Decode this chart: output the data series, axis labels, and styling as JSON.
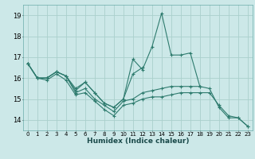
{
  "title": "",
  "xlabel": "Humidex (Indice chaleur)",
  "background_color": "#cce8e8",
  "grid_color": "#aad0cc",
  "line_color": "#2e7b6e",
  "x_values": [
    0,
    1,
    2,
    3,
    4,
    5,
    6,
    7,
    8,
    9,
    10,
    11,
    12,
    13,
    14,
    15,
    16,
    17,
    18,
    19,
    20,
    21,
    22,
    23
  ],
  "series": [
    [
      16.7,
      16.0,
      16.0,
      16.3,
      16.1,
      15.5,
      15.8,
      15.3,
      14.8,
      14.6,
      15.0,
      16.9,
      16.4,
      17.5,
      19.1,
      17.1,
      17.1,
      17.2,
      15.6,
      15.5,
      14.6,
      14.1,
      14.1,
      13.7
    ],
    [
      16.7,
      16.0,
      16.0,
      16.3,
      16.1,
      15.4,
      15.8,
      15.3,
      14.8,
      14.6,
      15.0,
      16.2,
      16.5,
      null,
      null,
      null,
      null,
      null,
      null,
      null,
      null,
      null,
      null,
      null
    ],
    [
      16.7,
      16.0,
      16.0,
      16.3,
      16.1,
      15.3,
      15.5,
      15.0,
      14.7,
      14.4,
      14.9,
      15.0,
      15.3,
      15.4,
      15.5,
      15.6,
      15.6,
      15.6,
      15.6,
      null,
      null,
      null,
      null,
      null
    ],
    [
      16.7,
      16.0,
      15.9,
      16.2,
      15.9,
      15.2,
      15.3,
      14.9,
      14.5,
      14.2,
      14.7,
      14.8,
      15.0,
      15.1,
      15.1,
      15.2,
      15.3,
      15.3,
      15.3,
      15.3,
      14.7,
      14.2,
      14.1,
      13.7
    ]
  ],
  "ylim": [
    13.5,
    19.5
  ],
  "yticks": [
    14,
    15,
    16,
    17,
    18,
    19
  ],
  "xlim": [
    -0.5,
    23.5
  ],
  "xticks": [
    0,
    1,
    2,
    3,
    4,
    5,
    6,
    7,
    8,
    9,
    10,
    11,
    12,
    13,
    14,
    15,
    16,
    17,
    18,
    19,
    20,
    21,
    22,
    23
  ]
}
